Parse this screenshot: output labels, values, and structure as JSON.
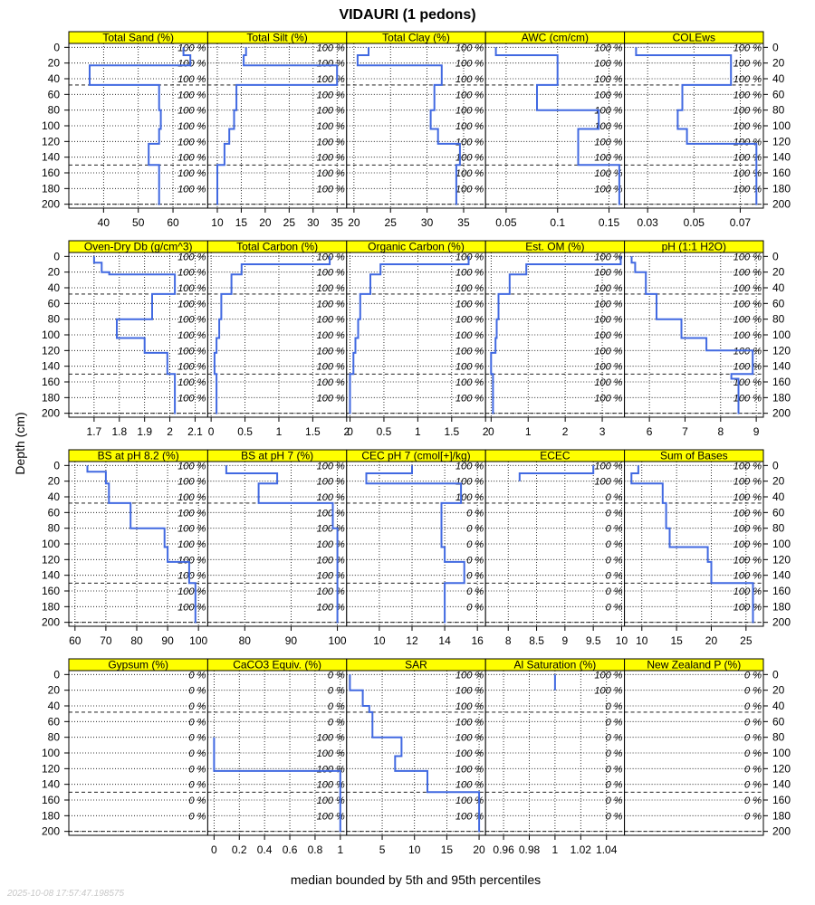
{
  "title": "VIDAURI (1 pedons)",
  "ylabel": "Depth (cm)",
  "xlabel": "median bounded by 5th and 95th percentiles",
  "timestamp": "2025-10-08 17:57:47.198575",
  "colors": {
    "strip": "#ffff00",
    "line": "#4169e1"
  },
  "chart_data": {
    "type": "line",
    "depth_ticks": [
      0,
      20,
      40,
      60,
      80,
      100,
      120,
      140,
      160,
      180,
      200
    ],
    "ylim": [
      -5,
      205
    ],
    "pct_depths": [
      0,
      20,
      40,
      60,
      80,
      100,
      120,
      140,
      160,
      180
    ],
    "panels": [
      {
        "name": "Total Sand (%)",
        "xlim": [
          30,
          70
        ],
        "xticks": [
          40,
          50,
          60
        ],
        "pct": [
          "100 %",
          "100 %",
          "100 %",
          "100 %",
          "100 %",
          "100 %",
          "100 %",
          "100 %",
          "100 %",
          "100 %"
        ],
        "x": [
          63,
          63,
          65,
          65,
          36,
          36,
          56,
          56,
          56.5,
          56.5,
          56,
          56,
          53,
          53,
          56,
          56
        ],
        "depth": [
          0,
          10,
          10,
          23,
          23,
          48,
          48,
          80,
          80,
          104,
          104,
          123,
          123,
          150,
          150,
          201
        ]
      },
      {
        "name": "Total Silt (%)",
        "xlim": [
          8,
          37
        ],
        "xticks": [
          10,
          15,
          20,
          25,
          30,
          35
        ],
        "pct": [
          "100 %",
          "100 %",
          "100 %",
          "100 %",
          "100 %",
          "100 %",
          "100 %",
          "100 %",
          "100 %",
          "100 %"
        ],
        "x": [
          16,
          16,
          15.5,
          15.5,
          35,
          35,
          14,
          14,
          13.5,
          13.5,
          12.5,
          12.5,
          11.5,
          11.5,
          10,
          10
        ],
        "depth": [
          0,
          10,
          10,
          23,
          23,
          48,
          48,
          80,
          80,
          104,
          104,
          123,
          123,
          150,
          150,
          201
        ]
      },
      {
        "name": "Total Clay (%)",
        "xlim": [
          19,
          38
        ],
        "xticks": [
          20,
          25,
          30,
          35
        ],
        "pct": [
          "100 %",
          "100 %",
          "100 %",
          "100 %",
          "100 %",
          "100 %",
          "100 %",
          "100 %",
          "100 %",
          "100 %"
        ],
        "x": [
          22,
          22,
          20.5,
          20.5,
          32,
          32,
          31,
          31,
          30.5,
          30.5,
          31.5,
          31.5,
          34.5,
          34.5,
          34,
          34
        ],
        "depth": [
          0,
          10,
          10,
          23,
          23,
          48,
          48,
          80,
          80,
          104,
          104,
          123,
          123,
          150,
          150,
          201
        ]
      },
      {
        "name": "AWC (cm/cm)",
        "xlim": [
          0.03,
          0.165
        ],
        "xticks": [
          0.05,
          0.1,
          0.15
        ],
        "pct": [
          "100 %",
          "100 %",
          "100 %",
          "100 %",
          "100 %",
          "100 %",
          "100 %",
          "100 %",
          "100 %",
          "100 %"
        ],
        "x": [
          0.04,
          0.04,
          0.1,
          0.1,
          0.08,
          0.08,
          0.14,
          0.14,
          0.12,
          0.12,
          0.16,
          0.16
        ],
        "depth": [
          0,
          10,
          10,
          48,
          48,
          80,
          80,
          104,
          104,
          150,
          150,
          201
        ]
      },
      {
        "name": "COLEws",
        "xlim": [
          0.02,
          0.08
        ],
        "xticks": [
          0.03,
          0.05,
          0.07
        ],
        "pct": [
          "100 %",
          "100 %",
          "100 %",
          "100 %",
          "100 %",
          "100 %",
          "100 %",
          "100 %",
          "100 %",
          "100 %"
        ],
        "x": [
          0.025,
          0.025,
          0.066,
          0.066,
          0.045,
          0.045,
          0.043,
          0.043,
          0.047,
          0.047,
          0.077,
          0.077
        ],
        "depth": [
          0,
          10,
          10,
          48,
          48,
          80,
          80,
          104,
          104,
          123,
          123,
          201
        ]
      },
      {
        "name": "Oven-Dry Db (g/cm^3)",
        "xlim": [
          1.6,
          2.15
        ],
        "xticks": [
          1.7,
          1.8,
          1.9,
          2.0,
          2.1
        ],
        "pct": [
          "100 %",
          "100 %",
          "100 %",
          "100 %",
          "100 %",
          "100 %",
          "100 %",
          "100 %",
          "100 %",
          "100 %"
        ],
        "x": [
          1.7,
          1.7,
          1.73,
          1.73,
          1.76,
          1.76,
          2.02,
          2.02,
          1.93,
          1.93,
          1.79,
          1.79,
          1.9,
          1.9,
          1.99,
          1.99,
          2.02,
          2.02
        ],
        "depth": [
          0,
          8,
          8,
          20,
          20,
          23,
          23,
          48,
          48,
          80,
          80,
          104,
          104,
          123,
          123,
          150,
          150,
          201
        ]
      },
      {
        "name": "Total Carbon (%)",
        "xlim": [
          -0.05,
          2.0
        ],
        "xticks": [
          0,
          0.5,
          1,
          1.5,
          2
        ],
        "pct": [
          "100 %",
          "100 %",
          "100 %",
          "100 %",
          "100 %",
          "100 %",
          "100 %",
          "100 %",
          "100 %",
          "100 %"
        ],
        "x": [
          1.75,
          1.75,
          0.45,
          0.45,
          0.3,
          0.3,
          0.15,
          0.15,
          0.12,
          0.12,
          0.08,
          0.08,
          0.05,
          0.05,
          0.08,
          0.08
        ],
        "depth": [
          0,
          10,
          10,
          23,
          23,
          48,
          48,
          80,
          80,
          104,
          104,
          123,
          123,
          150,
          150,
          201
        ]
      },
      {
        "name": "Organic Carbon (%)",
        "xlim": [
          -0.05,
          2.0
        ],
        "xticks": [
          0,
          0.5,
          1,
          1.5,
          2
        ],
        "pct": [
          "100 %",
          "100 %",
          "100 %",
          "100 %",
          "100 %",
          "100 %",
          "100 %",
          "100 %",
          "100 %",
          "100 %"
        ],
        "x": [
          1.75,
          1.75,
          0.45,
          0.45,
          0.3,
          0.3,
          0.15,
          0.15,
          0.12,
          0.12,
          0.08,
          0.08,
          0.05,
          0.05,
          0.0,
          0.0
        ],
        "depth": [
          0,
          10,
          10,
          23,
          23,
          48,
          48,
          80,
          80,
          104,
          104,
          123,
          123,
          150,
          150,
          201
        ]
      },
      {
        "name": "Est. OM (%)",
        "xlim": [
          -0.15,
          3.6
        ],
        "xticks": [
          0,
          1,
          2,
          3
        ],
        "pct": [
          "100 %",
          "100 %",
          "100 %",
          "100 %",
          "100 %",
          "100 %",
          "100 %",
          "100 %",
          "100 %",
          "100 %"
        ],
        "x": [
          3.5,
          3.5,
          0.95,
          0.95,
          0.5,
          0.5,
          0.2,
          0.2,
          0.15,
          0.15,
          0.12,
          0.12,
          0.0,
          0.0,
          0.05,
          0.05
        ],
        "depth": [
          0,
          10,
          10,
          23,
          23,
          48,
          48,
          80,
          80,
          104,
          104,
          123,
          123,
          150,
          150,
          201
        ]
      },
      {
        "name": "pH (1:1 H2O)",
        "xlim": [
          5.3,
          9.2
        ],
        "xticks": [
          6,
          7,
          8,
          9
        ],
        "pct": [
          "100 %",
          "100 %",
          "100 %",
          "100 %",
          "100 %",
          "100 %",
          "100 %",
          "100 %",
          "100 %",
          "100 %"
        ],
        "x": [
          5.5,
          5.5,
          5.6,
          5.6,
          5.9,
          5.9,
          6.2,
          6.2,
          6.9,
          6.9,
          7.6,
          7.6,
          8.9,
          8.9,
          8.3,
          8.3,
          8.5,
          8.5
        ],
        "depth": [
          0,
          8,
          8,
          20,
          20,
          48,
          48,
          80,
          80,
          104,
          104,
          120,
          120,
          150,
          150,
          156,
          156,
          201
        ]
      },
      {
        "name": "BS at pH 8.2 (%)",
        "xlim": [
          58,
          103
        ],
        "xticks": [
          60,
          70,
          80,
          90,
          100
        ],
        "pct": [
          "100 %",
          "100 %",
          "100 %",
          "100 %",
          "100 %",
          "100 %",
          "100 %",
          "100 %",
          "100 %",
          "100 %"
        ],
        "x": [
          64,
          64,
          70,
          70,
          71,
          71,
          78,
          78,
          89,
          89,
          90,
          90,
          97,
          97,
          99,
          99
        ],
        "depth": [
          0,
          8,
          8,
          23,
          23,
          48,
          48,
          80,
          80,
          104,
          104,
          123,
          123,
          150,
          150,
          201
        ]
      },
      {
        "name": "BS at pH 7 (%)",
        "xlim": [
          72,
          102
        ],
        "xticks": [
          80,
          90,
          100
        ],
        "pct": [
          "100 %",
          "100 %",
          "100 %",
          "100 %",
          "100 %",
          "100 %",
          "100 %",
          "100 %",
          "100 %",
          "100 %"
        ],
        "x": [
          76,
          76,
          87,
          87,
          83,
          83,
          99,
          99,
          100,
          100
        ],
        "depth": [
          0,
          10,
          10,
          23,
          23,
          48,
          48,
          80,
          80,
          201
        ]
      },
      {
        "name": "CEC pH 7 (cmol[+]/kg)",
        "xlim": [
          8,
          16.5
        ],
        "xticks": [
          10,
          12,
          14,
          16
        ],
        "pct": [
          "100 %",
          "100 %",
          "100 %",
          "0 %",
          "0 %",
          "0 %",
          "0 %",
          "0 %",
          "0 %",
          "0 %"
        ],
        "x": [
          12,
          12,
          9.2,
          9.2,
          15,
          15,
          13.8,
          13.8,
          14,
          14,
          15.2,
          15.2,
          14,
          14
        ],
        "depth": [
          0,
          10,
          10,
          23,
          23,
          48,
          48,
          104,
          104,
          123,
          123,
          150,
          150,
          201
        ]
      },
      {
        "name": "ECEC",
        "xlim": [
          7.6,
          10.05
        ],
        "xticks": [
          8.0,
          8.5,
          9.0,
          9.5,
          10.0
        ],
        "pct": [
          "100 %",
          "100 %",
          "0 %",
          "0 %",
          "0 %",
          "0 %",
          "0 %",
          "0 %",
          "0 %",
          "0 %"
        ],
        "x": [
          9.5,
          9.5,
          8.2,
          8.2
        ],
        "depth": [
          0,
          10,
          10,
          20
        ]
      },
      {
        "name": "Sum of Bases",
        "xlim": [
          7.5,
          27.5
        ],
        "xticks": [
          10,
          15,
          20,
          25
        ],
        "pct": [
          "100 %",
          "100 %",
          "100 %",
          "100 %",
          "100 %",
          "100 %",
          "100 %",
          "100 %",
          "100 %",
          "100 %"
        ],
        "x": [
          9.5,
          9.5,
          8.5,
          8.5,
          13,
          13,
          13.5,
          13.5,
          14,
          14,
          19.5,
          19.5,
          20,
          20,
          26,
          26
        ],
        "depth": [
          0,
          10,
          10,
          23,
          23,
          48,
          48,
          80,
          80,
          104,
          104,
          123,
          123,
          150,
          150,
          201
        ]
      },
      {
        "name": "Gypsum (%)",
        "xlim": [
          0,
          1
        ],
        "xticks": [],
        "pct": [
          "0 %",
          "0 %",
          "0 %",
          "0 %",
          "0 %",
          "0 %",
          "0 %",
          "0 %",
          "0 %",
          "0 %"
        ],
        "x": [],
        "depth": []
      },
      {
        "name": "CaCO3 Equiv. (%)",
        "xlim": [
          -0.05,
          1.05
        ],
        "xticks": [
          0.0,
          0.2,
          0.4,
          0.6,
          0.8,
          1.0
        ],
        "pct": [
          "0 %",
          "0 %",
          "0 %",
          "0 %",
          "100 %",
          "100 %",
          "100 %",
          "100 %",
          "100 %",
          "100 %"
        ],
        "x": [
          0,
          0,
          1,
          1
        ],
        "depth": [
          80,
          123,
          123,
          201
        ]
      },
      {
        "name": "SAR",
        "xlim": [
          -0.5,
          21
        ],
        "xticks": [
          5,
          10,
          15,
          20
        ],
        "pct": [
          "100 %",
          "100 %",
          "100 %",
          "100 %",
          "100 %",
          "100 %",
          "100 %",
          "100 %",
          "100 %",
          "100 %"
        ],
        "x": [
          0,
          0,
          2,
          2,
          3,
          3,
          3.5,
          3.5,
          8,
          8,
          7,
          7,
          12,
          12,
          20,
          20
        ],
        "depth": [
          0,
          20,
          20,
          40,
          40,
          48,
          48,
          80,
          80,
          104,
          104,
          123,
          123,
          150,
          150,
          201
        ]
      },
      {
        "name": "Al Saturation (%)",
        "xlim": [
          0.946,
          1.054
        ],
        "xticks": [
          0.96,
          0.98,
          1.0,
          1.02,
          1.04
        ],
        "pct": [
          "100 %",
          "100 %",
          "0 %",
          "0 %",
          "0 %",
          "0 %",
          "0 %",
          "0 %",
          "0 %",
          "0 %"
        ],
        "x": [
          1.0,
          1.0
        ],
        "depth": [
          0,
          20
        ]
      },
      {
        "name": "New Zealand P (%)",
        "xlim": [
          0,
          1
        ],
        "xticks": [],
        "pct": [
          "0 %",
          "0 %",
          "0 %",
          "0 %",
          "0 %",
          "0 %",
          "0 %",
          "0 %",
          "0 %",
          "0 %"
        ],
        "x": [],
        "depth": []
      }
    ]
  }
}
